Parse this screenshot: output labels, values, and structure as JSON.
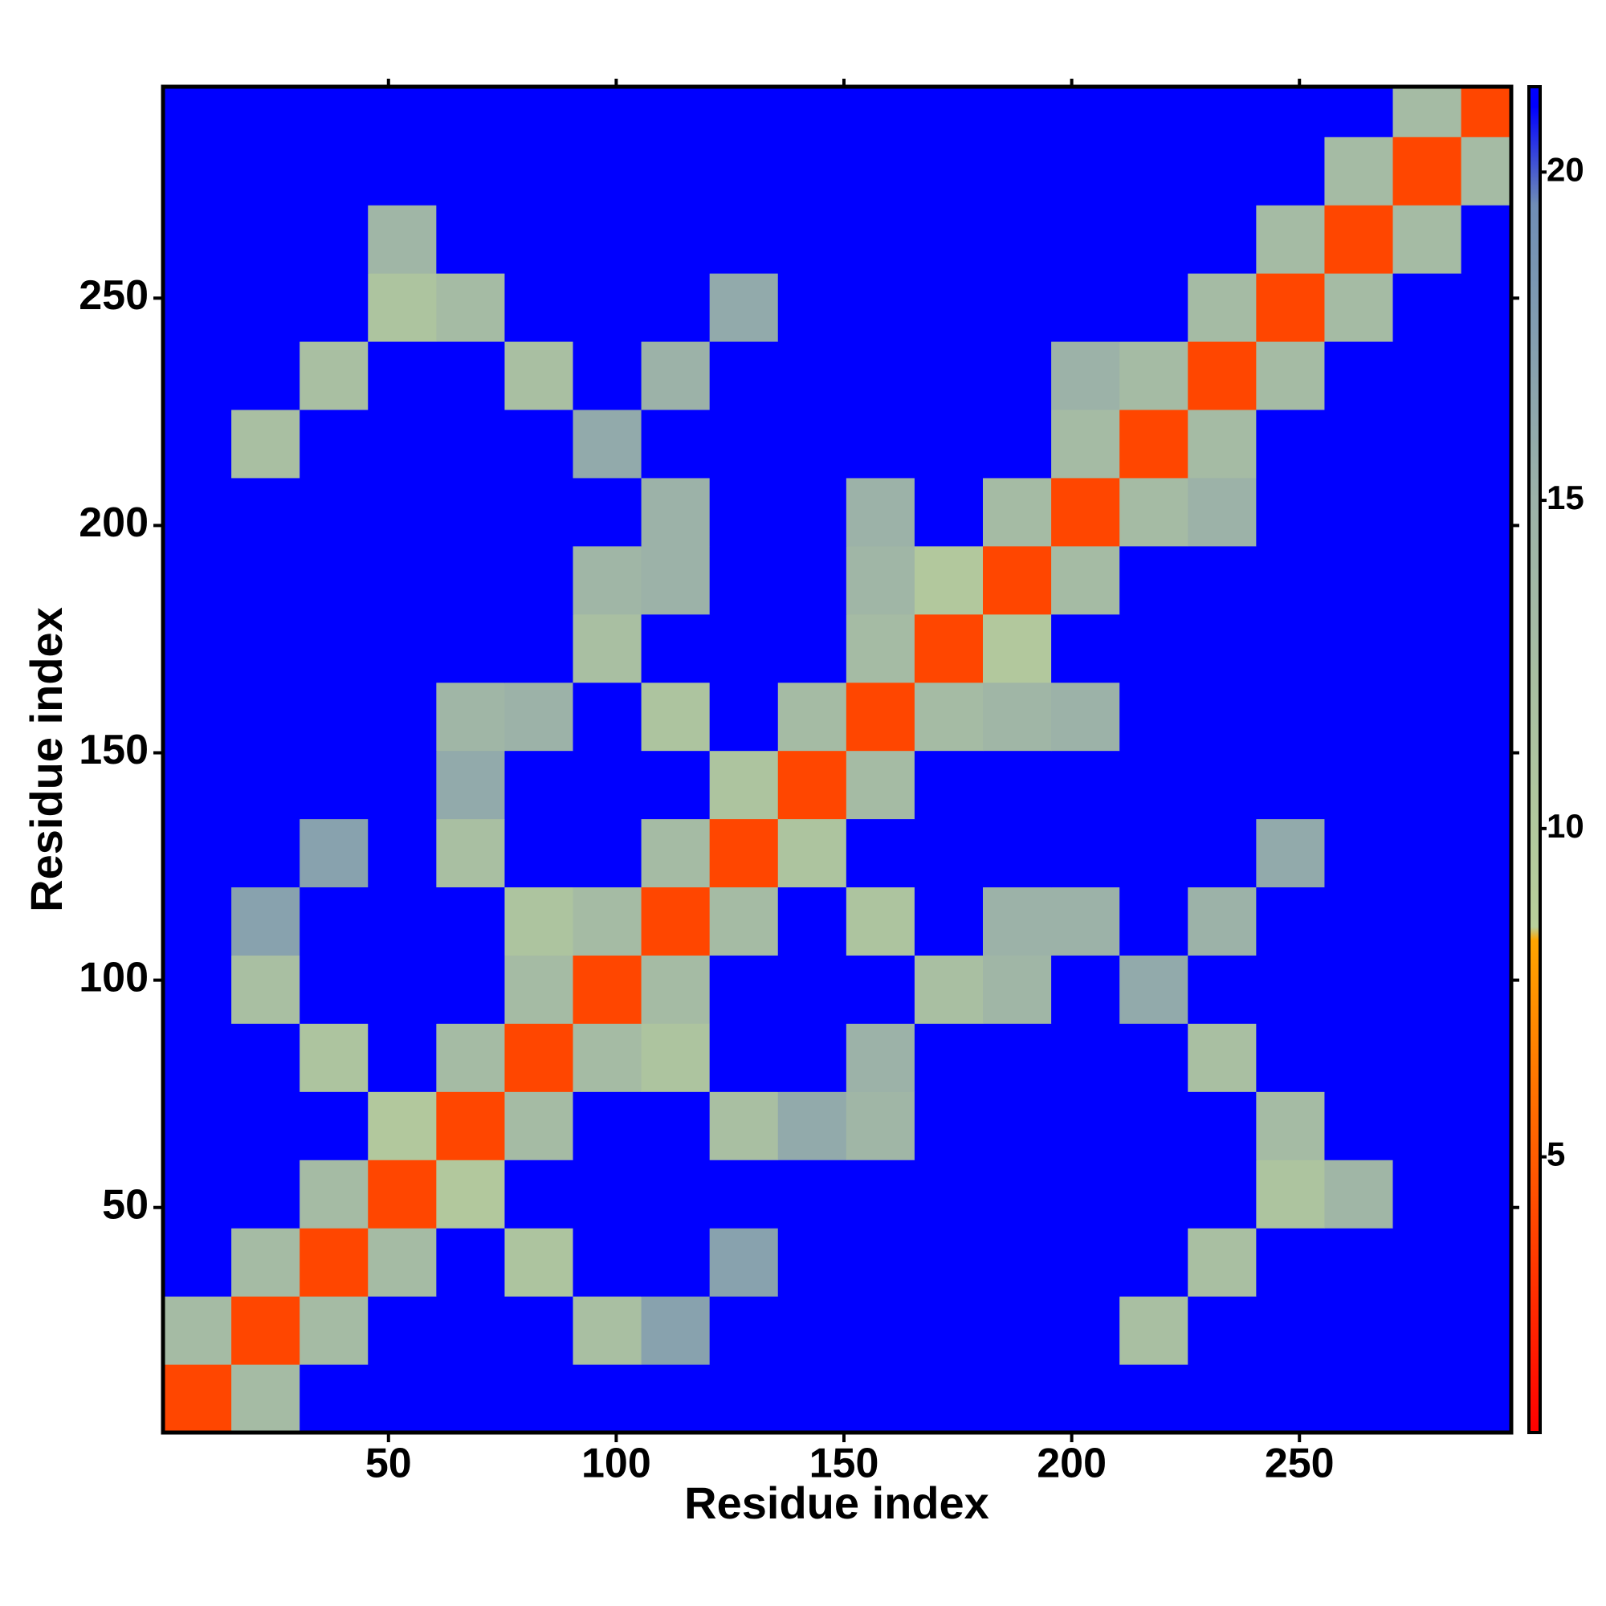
{
  "chart_data": {
    "type": "heatmap",
    "xlabel": "Residue index",
    "ylabel": "Residue index",
    "x_bins": [
      0.5,
      15.5,
      30.5,
      45.5,
      60.5,
      75.5,
      90.5,
      105.5,
      120.5,
      135.5,
      150.5,
      165.5,
      180.5,
      195.5,
      210.5,
      225.5,
      240.5,
      255.5,
      270.5,
      285.5,
      296.5
    ],
    "y_bins": [
      0.5,
      15.5,
      30.5,
      45.5,
      60.5,
      75.5,
      90.5,
      105.5,
      120.5,
      135.5,
      150.5,
      165.5,
      180.5,
      195.5,
      210.5,
      225.5,
      240.5,
      255.5,
      270.5,
      285.5,
      296.5
    ],
    "xlim": [
      0.5,
      296.5
    ],
    "ylim": [
      0.5,
      296.5
    ],
    "xticks": [
      50,
      100,
      150,
      200,
      250
    ],
    "yticks": [
      50,
      100,
      150,
      200,
      250
    ],
    "z": [
      [
        4,
        13,
        21,
        21,
        21,
        21,
        21,
        21,
        21,
        21,
        21,
        21,
        21,
        21,
        21,
        21,
        21,
        21,
        21,
        21
      ],
      [
        13,
        4,
        13,
        21,
        21,
        21,
        12,
        17,
        21,
        21,
        21,
        21,
        21,
        21,
        12,
        21,
        21,
        21,
        21,
        21
      ],
      [
        21,
        13,
        4,
        13,
        21,
        11,
        21,
        21,
        17,
        21,
        21,
        21,
        21,
        21,
        21,
        12,
        21,
        21,
        21,
        21
      ],
      [
        21,
        21,
        13,
        4,
        10,
        21,
        21,
        21,
        21,
        21,
        21,
        21,
        21,
        21,
        21,
        21,
        11,
        14,
        21,
        21
      ],
      [
        21,
        21,
        21,
        10,
        4,
        13,
        21,
        21,
        12,
        16,
        14,
        21,
        21,
        21,
        21,
        21,
        13,
        21,
        21,
        21
      ],
      [
        21,
        21,
        11,
        21,
        13,
        4,
        13,
        11,
        21,
        21,
        15,
        21,
        21,
        21,
        21,
        12,
        21,
        21,
        21,
        21
      ],
      [
        21,
        12,
        21,
        21,
        21,
        13,
        4,
        13,
        21,
        21,
        21,
        12,
        14,
        21,
        16,
        21,
        21,
        21,
        21,
        21
      ],
      [
        21,
        17,
        21,
        21,
        21,
        11,
        13,
        4,
        13,
        21,
        11,
        21,
        15,
        15,
        21,
        15,
        21,
        21,
        21,
        21
      ],
      [
        21,
        21,
        17,
        21,
        12,
        21,
        21,
        13,
        4,
        11,
        21,
        21,
        21,
        21,
        21,
        21,
        16,
        21,
        21,
        21
      ],
      [
        21,
        21,
        21,
        21,
        16,
        21,
        21,
        21,
        11,
        4,
        13,
        21,
        21,
        21,
        21,
        21,
        21,
        21,
        21,
        21
      ],
      [
        21,
        21,
        21,
        21,
        14,
        15,
        21,
        11,
        21,
        13,
        4,
        13,
        14,
        15,
        21,
        21,
        21,
        21,
        21,
        21
      ],
      [
        21,
        21,
        21,
        21,
        21,
        21,
        12,
        21,
        21,
        21,
        13,
        4,
        10,
        21,
        21,
        21,
        21,
        21,
        21,
        21
      ],
      [
        21,
        21,
        21,
        21,
        21,
        21,
        14,
        15,
        21,
        21,
        14,
        10,
        4,
        13,
        21,
        21,
        21,
        21,
        21,
        21
      ],
      [
        21,
        21,
        21,
        21,
        21,
        21,
        21,
        15,
        21,
        21,
        15,
        21,
        13,
        4,
        13,
        15,
        21,
        21,
        21,
        21
      ],
      [
        21,
        12,
        21,
        21,
        21,
        21,
        16,
        21,
        21,
        21,
        21,
        21,
        21,
        13,
        4,
        13,
        21,
        21,
        21,
        21
      ],
      [
        21,
        21,
        12,
        21,
        21,
        12,
        21,
        15,
        21,
        21,
        21,
        21,
        21,
        15,
        13,
        4,
        13,
        21,
        21,
        21
      ],
      [
        21,
        21,
        21,
        11,
        13,
        21,
        21,
        21,
        16,
        21,
        21,
        21,
        21,
        21,
        21,
        13,
        4,
        13,
        21,
        21
      ],
      [
        21,
        21,
        21,
        14,
        21,
        21,
        21,
        21,
        21,
        21,
        21,
        21,
        21,
        21,
        21,
        21,
        13,
        4,
        13,
        21
      ],
      [
        21,
        21,
        21,
        21,
        21,
        21,
        21,
        21,
        21,
        21,
        21,
        21,
        21,
        21,
        21,
        21,
        21,
        13,
        4,
        13
      ],
      [
        21,
        21,
        21,
        21,
        21,
        21,
        21,
        21,
        21,
        21,
        21,
        21,
        21,
        21,
        21,
        21,
        21,
        21,
        13,
        4
      ]
    ],
    "colorbar": {
      "lim": [
        0.8,
        21.3
      ],
      "ticks": [
        5,
        10,
        15,
        20
      ],
      "stops": [
        {
          "value": 0.8,
          "color": "#ff0000"
        },
        {
          "value": 8.3,
          "color": "#ffa500"
        },
        {
          "value": 8.5,
          "color": "#b8cf9a"
        },
        {
          "value": 15,
          "color": "#9cb2a8"
        },
        {
          "value": 19.5,
          "color": "#6f8db5"
        },
        {
          "value": 21,
          "color": "#0000ff"
        }
      ]
    }
  }
}
